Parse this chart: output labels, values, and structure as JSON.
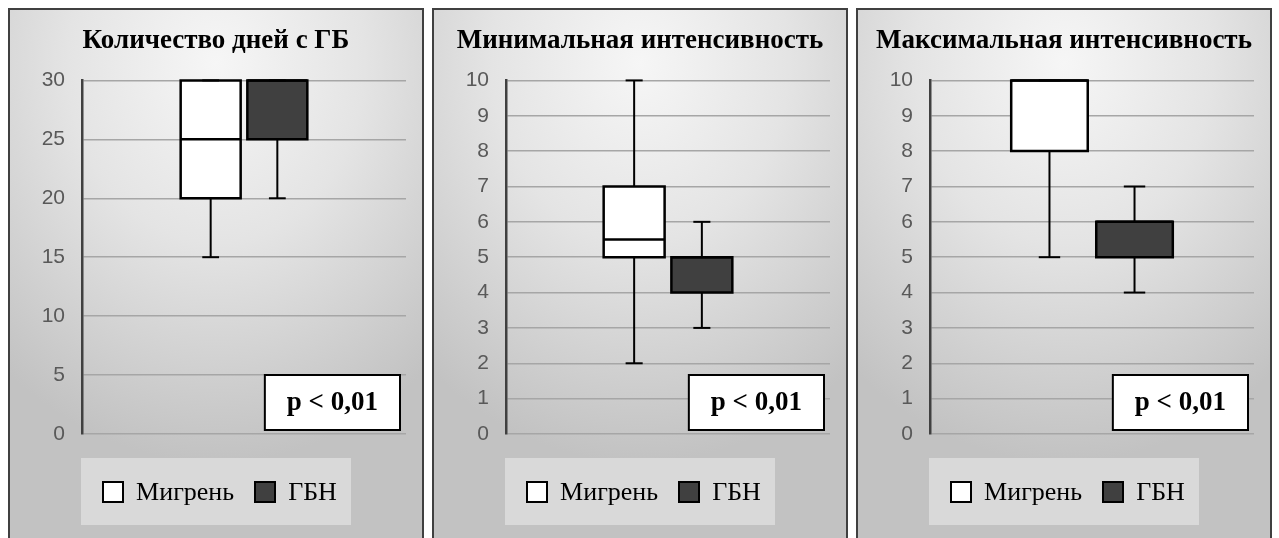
{
  "chart_data": [
    {
      "type": "box",
      "title": "Количество дней с ГБ",
      "categories": [
        null
      ],
      "series": [
        {
          "name": "Мигрень",
          "color": "#ffffff",
          "boxes": [
            {
              "low": 15,
              "q1": 20,
              "median": 25,
              "q3": 30,
              "high": 30
            }
          ]
        },
        {
          "name": "ГБН",
          "color": "#404040",
          "boxes": [
            {
              "low": 20,
              "q1": 25,
              "median": 30,
              "q3": 30,
              "high": 30
            }
          ]
        }
      ],
      "ylim": [
        0,
        30
      ],
      "yticks": [
        0,
        5,
        10,
        15,
        20,
        25,
        30
      ],
      "grid": "y",
      "legend": "bottom",
      "annotations": [
        "p < 0,01"
      ]
    },
    {
      "type": "box",
      "title": "Минимальная интенсивность",
      "categories": [
        null
      ],
      "series": [
        {
          "name": "Мигрень",
          "color": "#ffffff",
          "boxes": [
            {
              "low": 2,
              "q1": 5,
              "median": 5.5,
              "q3": 7,
              "high": 10
            }
          ]
        },
        {
          "name": "ГБН",
          "color": "#404040",
          "boxes": [
            {
              "low": 3,
              "q1": 4,
              "median": 5,
              "q3": 5,
              "high": 6
            }
          ]
        }
      ],
      "ylim": [
        0,
        10
      ],
      "yticks": [
        0,
        1,
        2,
        3,
        4,
        5,
        6,
        7,
        8,
        9,
        10
      ],
      "grid": "y",
      "legend": "bottom",
      "annotations": [
        "p < 0,01"
      ]
    },
    {
      "type": "box",
      "title": "Максимальная интенсивность",
      "categories": [
        null
      ],
      "series": [
        {
          "name": "Мигрень",
          "color": "#ffffff",
          "boxes": [
            {
              "low": 5,
              "q1": 8,
              "median": 10,
              "q3": 10,
              "high": 10
            }
          ]
        },
        {
          "name": "ГБН",
          "color": "#404040",
          "boxes": [
            {
              "low": 4,
              "q1": 5,
              "median": 6,
              "q3": 6,
              "high": 7
            }
          ]
        }
      ],
      "ylim": [
        0,
        10
      ],
      "yticks": [
        0,
        1,
        2,
        3,
        4,
        5,
        6,
        7,
        8,
        9,
        10
      ],
      "grid": "y",
      "legend": "bottom",
      "annotations": [
        "p < 0,01"
      ]
    }
  ]
}
